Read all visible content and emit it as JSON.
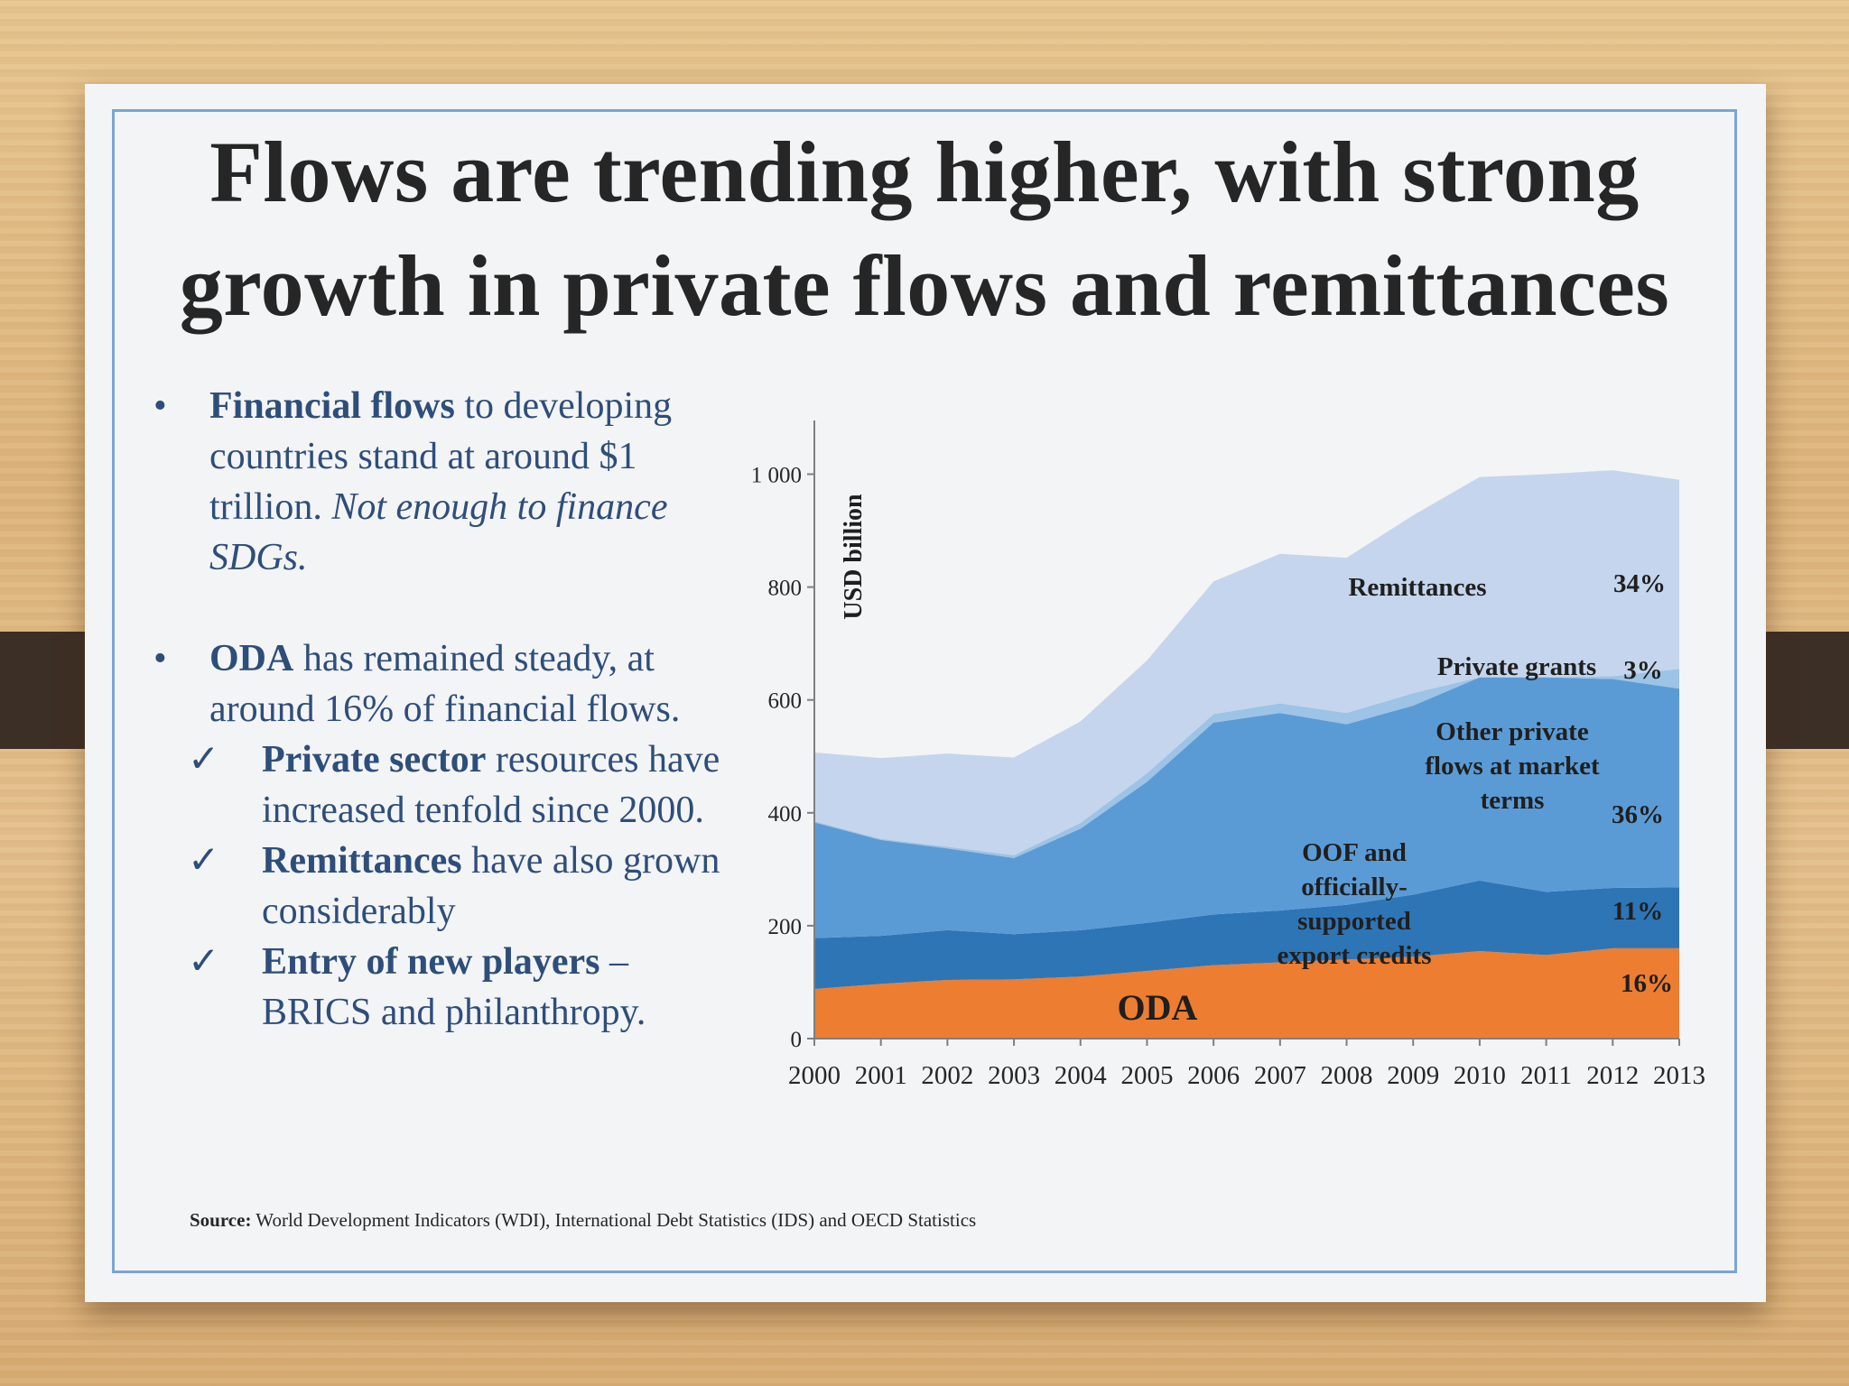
{
  "slide": {
    "title_line1": "Flows are trending higher, with strong",
    "title_line2": "growth in private flows and remittances",
    "bullets": [
      {
        "parts": [
          {
            "text": "Financial flows",
            "style": "bold"
          },
          {
            "text": " to developing countries stand at around $1 trillion.  ",
            "style": "normal"
          },
          {
            "text": "Not enough to finance SDGs.",
            "style": "italic"
          }
        ]
      },
      {
        "parts": [
          {
            "text": "ODA",
            "style": "bold"
          },
          {
            "text": " has remained steady, at around 16% of  financial flows.",
            "style": "normal"
          }
        ]
      }
    ],
    "subbullets": [
      {
        "parts": [
          {
            "text": "Private sector",
            "style": "bold"
          },
          {
            "text": " resources have increased tenfold since 2000.",
            "style": "normal"
          }
        ]
      },
      {
        "parts": [
          {
            "text": "Remittances",
            "style": "bold"
          },
          {
            "text": " have also grown considerably",
            "style": "normal"
          }
        ]
      },
      {
        "parts": [
          {
            "text": "Entry of  new players",
            "style": "bold"
          },
          {
            "text": " – BRICS and philanthropy.",
            "style": "normal"
          }
        ]
      }
    ],
    "bullet_glyph": "•",
    "check_glyph": "✓",
    "source_label": "Source:",
    "source_text": " World Development Indicators (WDI), International Debt Statistics (IDS) and OECD Statistics"
  },
  "chart_data": {
    "type": "area",
    "stacked": true,
    "ylabel": "USD billion",
    "ylim": [
      0,
      1050
    ],
    "yticks": [
      0,
      200,
      400,
      600,
      800,
      1000
    ],
    "ytick_labels": [
      "0",
      "200",
      "400",
      "600",
      "800",
      "1 000"
    ],
    "x": [
      "2000",
      "2001",
      "2002",
      "2003",
      "2004",
      "2005",
      "2006",
      "2007",
      "2008",
      "2009",
      "2010",
      "2011",
      "2012",
      "2013"
    ],
    "series": [
      {
        "name": "ODA",
        "color": "#ed7d31",
        "values": [
          88,
          97,
          104,
          105,
          110,
          120,
          130,
          135,
          140,
          145,
          155,
          148,
          160,
          160
        ]
      },
      {
        "name": "OOF and officially-supported export credits",
        "color": "#2e75b6",
        "values": [
          90,
          85,
          88,
          80,
          82,
          85,
          90,
          92,
          97,
          110,
          125,
          112,
          107,
          108
        ]
      },
      {
        "name": "Other private flows at market terms",
        "color": "#5b9bd5",
        "values": [
          205,
          170,
          145,
          135,
          180,
          250,
          340,
          350,
          320,
          335,
          360,
          380,
          370,
          352
        ]
      },
      {
        "name": "Private grants",
        "color": "#9dc3e6",
        "values": [
          2,
          2,
          3,
          5,
          10,
          15,
          15,
          17,
          20,
          22,
          0,
          0,
          5,
          35
        ]
      },
      {
        "name": "Remittances",
        "color": "#c5d5ed",
        "values": [
          122,
          143,
          165,
          173,
          180,
          200,
          235,
          265,
          275,
          315,
          355,
          360,
          365,
          335
        ]
      }
    ],
    "annotations": [
      {
        "text": "Remittances",
        "percent": "34%"
      },
      {
        "text": "Private grants",
        "percent": "3%"
      },
      {
        "text_lines": [
          "Other private",
          "flows at market",
          "terms"
        ],
        "percent": "36%"
      },
      {
        "text_lines": [
          "OOF and",
          "officially-",
          "supported",
          "export credits"
        ],
        "percent": "11%"
      },
      {
        "text": "ODA",
        "percent": "16%"
      }
    ],
    "grid": false,
    "legend": "none"
  }
}
